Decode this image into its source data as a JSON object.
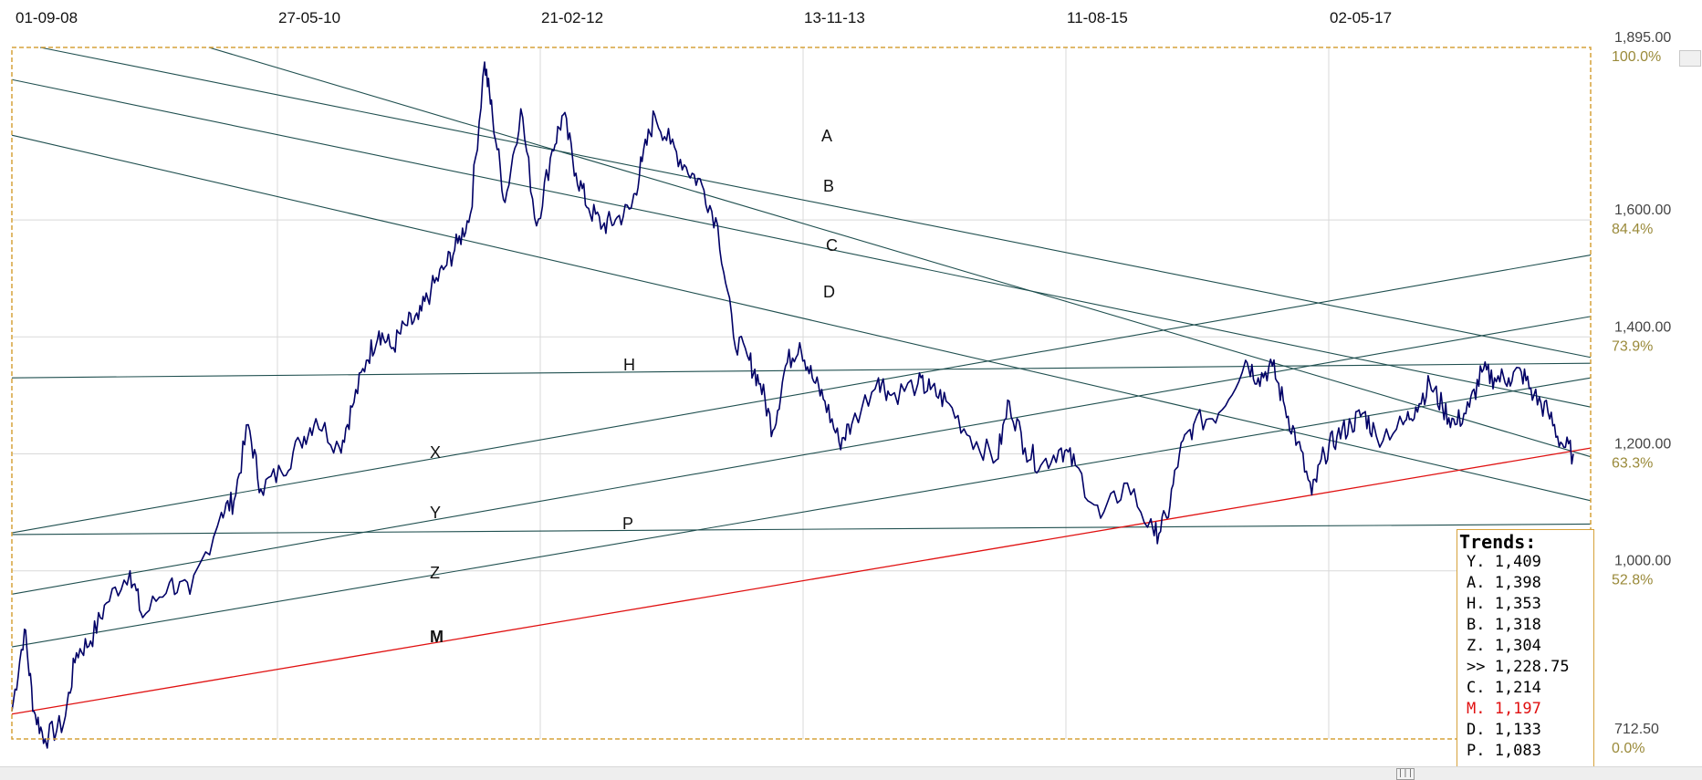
{
  "chart_data": {
    "type": "line",
    "x_tick_labels": [
      "01-09-08",
      "27-05-10",
      "21-02-12",
      "13-11-13",
      "11-08-15",
      "02-05-17"
    ],
    "price_levels": [
      {
        "price": "1,895.00",
        "pct": "100.0%"
      },
      {
        "price": "1,600.00",
        "pct": "84.4%"
      },
      {
        "price": "1,400.00",
        "pct": "73.9%"
      },
      {
        "price": "1,200.00",
        "pct": "63.3%"
      },
      {
        "price": "1,000.00",
        "pct": "52.8%"
      },
      {
        "price": "712.50",
        "pct": "0.0%"
      }
    ],
    "ylim": [
      712.5,
      1895
    ],
    "x_range_years": [
      2008.67,
      2018.69
    ],
    "series": [
      {
        "values": [
          [
            2008.67,
            760
          ],
          [
            2008.75,
            900
          ],
          [
            2008.81,
            760
          ],
          [
            2008.88,
            712.5
          ],
          [
            2009.0,
            740
          ],
          [
            2009.08,
            860
          ],
          [
            2009.17,
            880
          ],
          [
            2009.27,
            945
          ],
          [
            2009.42,
            1000
          ],
          [
            2009.5,
            920
          ],
          [
            2009.67,
            980
          ],
          [
            2009.8,
            960
          ],
          [
            2010.0,
            1100
          ],
          [
            2010.08,
            1120
          ],
          [
            2010.17,
            1250
          ],
          [
            2010.25,
            1140
          ],
          [
            2010.38,
            1170
          ],
          [
            2010.5,
            1220
          ],
          [
            2010.6,
            1260
          ],
          [
            2010.75,
            1210
          ],
          [
            2010.83,
            1280
          ],
          [
            2010.92,
            1360
          ],
          [
            2011.0,
            1410
          ],
          [
            2011.08,
            1380
          ],
          [
            2011.17,
            1420
          ],
          [
            2011.25,
            1430
          ],
          [
            2011.33,
            1480
          ],
          [
            2011.42,
            1520
          ],
          [
            2011.5,
            1560
          ],
          [
            2011.58,
            1610
          ],
          [
            2011.67,
            1870
          ],
          [
            2011.72,
            1780
          ],
          [
            2011.8,
            1630
          ],
          [
            2011.9,
            1790
          ],
          [
            2012.0,
            1590
          ],
          [
            2012.1,
            1720
          ],
          [
            2012.17,
            1780
          ],
          [
            2012.25,
            1680
          ],
          [
            2012.33,
            1620
          ],
          [
            2012.42,
            1590
          ],
          [
            2012.5,
            1600
          ],
          [
            2012.6,
            1620
          ],
          [
            2012.67,
            1700
          ],
          [
            2012.75,
            1780
          ],
          [
            2012.85,
            1730
          ],
          [
            2012.95,
            1690
          ],
          [
            2013.05,
            1660
          ],
          [
            2013.15,
            1590
          ],
          [
            2013.25,
            1400
          ],
          [
            2013.35,
            1360
          ],
          [
            2013.42,
            1320
          ],
          [
            2013.5,
            1240
          ],
          [
            2013.58,
            1350
          ],
          [
            2013.67,
            1390
          ],
          [
            2013.75,
            1330
          ],
          [
            2013.83,
            1290
          ],
          [
            2013.92,
            1220
          ],
          [
            2014.0,
            1250
          ],
          [
            2014.17,
            1330
          ],
          [
            2014.25,
            1300
          ],
          [
            2014.42,
            1320
          ],
          [
            2014.5,
            1310
          ],
          [
            2014.6,
            1290
          ],
          [
            2014.75,
            1230
          ],
          [
            2014.92,
            1190
          ],
          [
            2015.0,
            1290
          ],
          [
            2015.1,
            1210
          ],
          [
            2015.2,
            1180
          ],
          [
            2015.33,
            1210
          ],
          [
            2015.42,
            1180
          ],
          [
            2015.58,
            1090
          ],
          [
            2015.75,
            1150
          ],
          [
            2015.92,
            1060
          ],
          [
            2016.0,
            1090
          ],
          [
            2016.08,
            1200
          ],
          [
            2016.17,
            1250
          ],
          [
            2016.33,
            1270
          ],
          [
            2016.5,
            1360
          ],
          [
            2016.58,
            1330
          ],
          [
            2016.67,
            1350
          ],
          [
            2016.75,
            1280
          ],
          [
            2016.83,
            1220
          ],
          [
            2016.92,
            1130
          ],
          [
            2017.0,
            1200
          ],
          [
            2017.08,
            1230
          ],
          [
            2017.17,
            1250
          ],
          [
            2017.25,
            1270
          ],
          [
            2017.33,
            1230
          ],
          [
            2017.5,
            1250
          ],
          [
            2017.58,
            1280
          ],
          [
            2017.67,
            1320
          ],
          [
            2017.75,
            1280
          ],
          [
            2017.83,
            1250
          ],
          [
            2017.92,
            1280
          ],
          [
            2018.0,
            1340
          ],
          [
            2018.08,
            1330
          ],
          [
            2018.17,
            1330
          ],
          [
            2018.25,
            1340
          ],
          [
            2018.33,
            1300
          ],
          [
            2018.42,
            1270
          ],
          [
            2018.5,
            1220
          ],
          [
            2018.58,
            1200
          ]
        ]
      }
    ],
    "trendlines": [
      {
        "label": "A",
        "color": "#1f4f4f",
        "from": [
          2008.85,
          1895
        ],
        "to": [
          2018.69,
          1365
        ]
      },
      {
        "label": "B",
        "color": "#1f4f4f",
        "from": [
          2008.67,
          1840
        ],
        "to": [
          2018.69,
          1280
        ]
      },
      {
        "label": "C",
        "color": "#1f4f4f",
        "from": [
          2009.92,
          1895
        ],
        "to": [
          2018.69,
          1195
        ]
      },
      {
        "label": "D",
        "color": "#1f4f4f",
        "from": [
          2008.67,
          1745
        ],
        "to": [
          2018.69,
          1120
        ]
      },
      {
        "label": "H",
        "color": "#1f4f4f",
        "from": [
          2008.67,
          1330
        ],
        "to": [
          2018.69,
          1355
        ]
      },
      {
        "label": "X",
        "color": "#1f4f4f",
        "from": [
          2008.67,
          1065
        ],
        "to": [
          2018.69,
          1540
        ]
      },
      {
        "label": "Y",
        "color": "#1f4f4f",
        "from": [
          2008.67,
          960
        ],
        "to": [
          2018.69,
          1435
        ]
      },
      {
        "label": "Z",
        "color": "#1f4f4f",
        "from": [
          2008.67,
          870
        ],
        "to": [
          2018.69,
          1330
        ]
      },
      {
        "label": "P",
        "color": "#1f4f4f",
        "from": [
          2008.67,
          1062
        ],
        "to": [
          2018.69,
          1080
        ]
      },
      {
        "label": "M",
        "color": "#e01010",
        "from": [
          2008.67,
          755
        ],
        "to": [
          2018.69,
          1210
        ]
      }
    ],
    "grid": true,
    "legend": "bottom-right"
  },
  "trends_panel": {
    "title": "Trends:",
    "rows": [
      {
        "text": "Y. 1,409",
        "color": "#000000"
      },
      {
        "text": "A. 1,398",
        "color": "#000000"
      },
      {
        "text": "H. 1,353",
        "color": "#000000"
      },
      {
        "text": "B. 1,318",
        "color": "#000000"
      },
      {
        "text": "Z. 1,304",
        "color": "#000000"
      },
      {
        "text": ">> 1,228.75",
        "color": "#000000"
      },
      {
        "text": "C. 1,214",
        "color": "#000000"
      },
      {
        "text": "M. 1,197",
        "color": "#e01010"
      },
      {
        "text": "D. 1,133",
        "color": "#000000"
      },
      {
        "text": "P. 1,083",
        "color": "#000000"
      }
    ]
  },
  "colors": {
    "price_line": "#000066",
    "frame": "#d6a23a",
    "grid": "#d9d9d9",
    "trend_line": "#1f4f4f",
    "support_line": "#e01010"
  }
}
